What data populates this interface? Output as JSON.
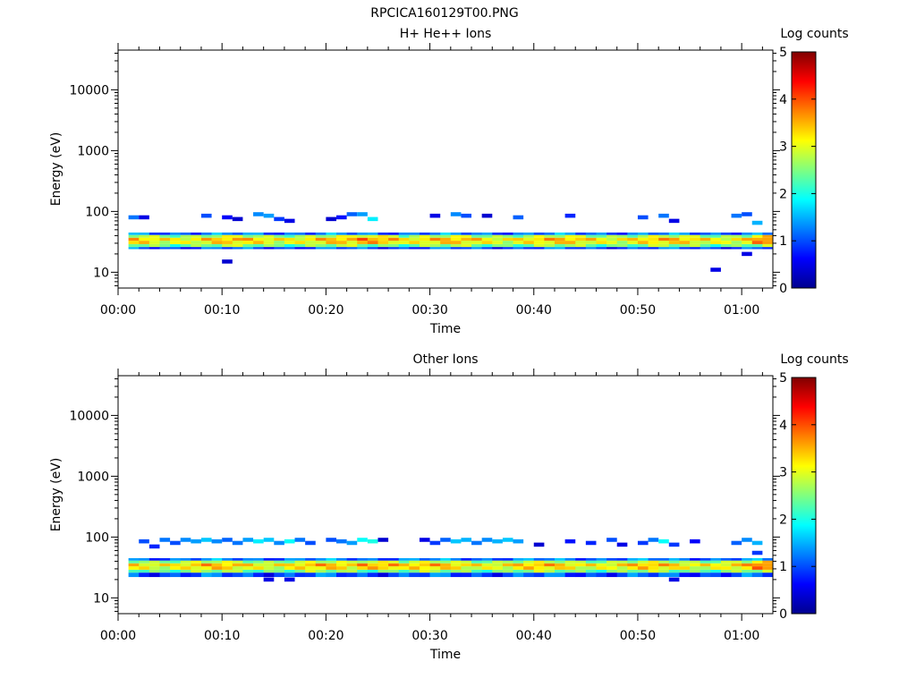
{
  "figure": {
    "title": "RPCICA160129T00.PNG"
  },
  "chart_data": [
    {
      "type": "heatmap",
      "title": "H+ He++ Ions",
      "xlabel": "Time",
      "ylabel": "Energy (eV)",
      "x_ticks": [
        "00:00",
        "00:10",
        "00:20",
        "00:30",
        "00:40",
        "00:50",
        "01:00"
      ],
      "x_range_minutes": [
        0,
        63
      ],
      "y_scale": "log",
      "y_ticks": [
        10,
        100,
        1000,
        10000
      ],
      "y_tick_labels": [
        "10",
        "100",
        "1000",
        "10000"
      ],
      "y_range": [
        5.5,
        45000
      ],
      "colorbar": {
        "label": "Log counts",
        "range": [
          0,
          5
        ],
        "ticks": [
          "0",
          "1",
          "2",
          "3",
          "4",
          "5"
        ],
        "colormap": "jet"
      },
      "band": {
        "energy_low": 24,
        "energy_high": 45,
        "description_values": "main band ~25-45 eV, peak log counts ~3.0-3.6"
      },
      "cells": [
        {
          "t": 1.5,
          "e": 80,
          "v": 1.2
        },
        {
          "t": 2.5,
          "e": 80,
          "v": 0.5
        },
        {
          "t": 8.5,
          "e": 85,
          "v": 1.0
        },
        {
          "t": 10.5,
          "e": 80,
          "v": 0.6
        },
        {
          "t": 11.5,
          "e": 75,
          "v": 0.4
        },
        {
          "t": 13.5,
          "e": 90,
          "v": 1.3
        },
        {
          "t": 14.5,
          "e": 85,
          "v": 1.4
        },
        {
          "t": 15.5,
          "e": 75,
          "v": 0.9
        },
        {
          "t": 16.5,
          "e": 70,
          "v": 0.5
        },
        {
          "t": 20.5,
          "e": 75,
          "v": 0.4
        },
        {
          "t": 21.5,
          "e": 80,
          "v": 0.7
        },
        {
          "t": 22.5,
          "e": 90,
          "v": 1.1
        },
        {
          "t": 23.5,
          "e": 90,
          "v": 1.4
        },
        {
          "t": 24.5,
          "e": 75,
          "v": 1.8
        },
        {
          "t": 30.5,
          "e": 85,
          "v": 0.5
        },
        {
          "t": 32.5,
          "e": 90,
          "v": 1.3
        },
        {
          "t": 33.5,
          "e": 85,
          "v": 1.0
        },
        {
          "t": 35.5,
          "e": 85,
          "v": 0.4
        },
        {
          "t": 38.5,
          "e": 80,
          "v": 1.1
        },
        {
          "t": 43.5,
          "e": 85,
          "v": 0.8
        },
        {
          "t": 50.5,
          "e": 80,
          "v": 1.0
        },
        {
          "t": 52.5,
          "e": 85,
          "v": 1.2
        },
        {
          "t": 53.5,
          "e": 70,
          "v": 0.5
        },
        {
          "t": 59.5,
          "e": 85,
          "v": 1.2
        },
        {
          "t": 60.5,
          "e": 90,
          "v": 1.0
        },
        {
          "t": 61.5,
          "e": 65,
          "v": 1.5
        },
        {
          "t": 10.5,
          "e": 15,
          "v": 0.4
        },
        {
          "t": 57.5,
          "e": 11,
          "v": 0.5
        },
        {
          "t": 60.5,
          "e": 20,
          "v": 0.5
        }
      ]
    },
    {
      "type": "heatmap",
      "title": "Other Ions",
      "xlabel": "Time",
      "ylabel": "Energy (eV)",
      "x_ticks": [
        "00:00",
        "00:10",
        "00:20",
        "00:30",
        "00:40",
        "00:50",
        "01:00"
      ],
      "x_range_minutes": [
        0,
        63
      ],
      "y_scale": "log",
      "y_ticks": [
        10,
        100,
        1000,
        10000
      ],
      "y_tick_labels": [
        "10",
        "100",
        "1000",
        "10000"
      ],
      "y_range": [
        5.5,
        45000
      ],
      "colorbar": {
        "label": "Log counts",
        "range": [
          0,
          5
        ],
        "ticks": [
          "0",
          "1",
          "2",
          "3",
          "4",
          "5"
        ],
        "colormap": "jet"
      },
      "band": {
        "energy_low": 22,
        "energy_high": 45,
        "description_values": "main band ~25-45 eV, peak log counts ~3.0-3.6"
      },
      "cells": [
        {
          "t": 2.5,
          "e": 85,
          "v": 1.0
        },
        {
          "t": 3.5,
          "e": 70,
          "v": 0.8
        },
        {
          "t": 4.5,
          "e": 90,
          "v": 1.2
        },
        {
          "t": 5.5,
          "e": 80,
          "v": 1.0
        },
        {
          "t": 6.5,
          "e": 90,
          "v": 1.3
        },
        {
          "t": 7.5,
          "e": 85,
          "v": 1.4
        },
        {
          "t": 8.5,
          "e": 90,
          "v": 1.6
        },
        {
          "t": 9.5,
          "e": 85,
          "v": 1.3
        },
        {
          "t": 10.5,
          "e": 90,
          "v": 1.1
        },
        {
          "t": 11.5,
          "e": 80,
          "v": 1.2
        },
        {
          "t": 12.5,
          "e": 90,
          "v": 1.4
        },
        {
          "t": 13.5,
          "e": 85,
          "v": 1.8
        },
        {
          "t": 14.5,
          "e": 90,
          "v": 1.6
        },
        {
          "t": 15.5,
          "e": 80,
          "v": 1.3
        },
        {
          "t": 16.5,
          "e": 85,
          "v": 1.9
        },
        {
          "t": 17.5,
          "e": 90,
          "v": 1.2
        },
        {
          "t": 18.5,
          "e": 80,
          "v": 1.0
        },
        {
          "t": 20.5,
          "e": 90,
          "v": 1.0
        },
        {
          "t": 21.5,
          "e": 85,
          "v": 1.2
        },
        {
          "t": 22.5,
          "e": 80,
          "v": 1.4
        },
        {
          "t": 23.5,
          "e": 90,
          "v": 1.9
        },
        {
          "t": 24.5,
          "e": 85,
          "v": 2.0
        },
        {
          "t": 25.5,
          "e": 90,
          "v": 0.4
        },
        {
          "t": 29.5,
          "e": 90,
          "v": 0.5
        },
        {
          "t": 30.5,
          "e": 80,
          "v": 0.9
        },
        {
          "t": 31.5,
          "e": 90,
          "v": 1.1
        },
        {
          "t": 32.5,
          "e": 85,
          "v": 1.6
        },
        {
          "t": 33.5,
          "e": 90,
          "v": 1.5
        },
        {
          "t": 34.5,
          "e": 80,
          "v": 1.2
        },
        {
          "t": 35.5,
          "e": 90,
          "v": 1.3
        },
        {
          "t": 36.5,
          "e": 85,
          "v": 1.5
        },
        {
          "t": 37.5,
          "e": 90,
          "v": 1.6
        },
        {
          "t": 38.5,
          "e": 85,
          "v": 1.4
        },
        {
          "t": 40.5,
          "e": 75,
          "v": 0.4
        },
        {
          "t": 43.5,
          "e": 85,
          "v": 0.7
        },
        {
          "t": 45.5,
          "e": 80,
          "v": 0.8
        },
        {
          "t": 47.5,
          "e": 90,
          "v": 1.0
        },
        {
          "t": 48.5,
          "e": 75,
          "v": 0.5
        },
        {
          "t": 50.5,
          "e": 80,
          "v": 0.9
        },
        {
          "t": 51.5,
          "e": 90,
          "v": 1.2
        },
        {
          "t": 52.5,
          "e": 85,
          "v": 1.9
        },
        {
          "t": 53.5,
          "e": 75,
          "v": 0.9
        },
        {
          "t": 55.5,
          "e": 85,
          "v": 0.6
        },
        {
          "t": 59.5,
          "e": 80,
          "v": 1.1
        },
        {
          "t": 60.5,
          "e": 90,
          "v": 1.3
        },
        {
          "t": 61.5,
          "e": 80,
          "v": 1.5
        },
        {
          "t": 61.5,
          "e": 55,
          "v": 0.9
        },
        {
          "t": 14.5,
          "e": 20,
          "v": 0.5
        },
        {
          "t": 16.5,
          "e": 20,
          "v": 0.5
        },
        {
          "t": 53.5,
          "e": 20,
          "v": 0.5
        }
      ]
    }
  ]
}
